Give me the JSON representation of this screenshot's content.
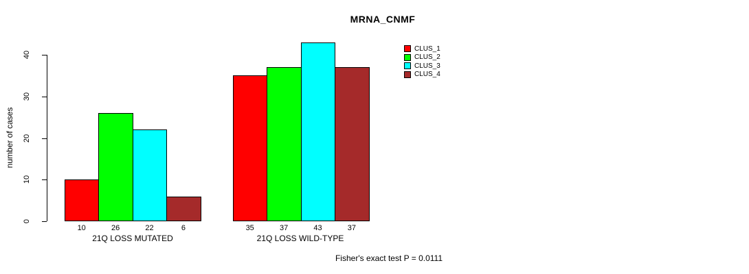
{
  "chart_data": {
    "type": "bar",
    "title": "MRNA_CNMF",
    "ylabel": "number of cases",
    "xlabel": "",
    "ylim": [
      0,
      43
    ],
    "yticks": [
      0,
      10,
      20,
      30,
      40
    ],
    "categories": [
      "21Q LOSS MUTATED",
      "21Q LOSS WILD-TYPE"
    ],
    "series": [
      {
        "name": "CLUS_1",
        "color": "#ff0000",
        "values": [
          10,
          35
        ]
      },
      {
        "name": "CLUS_2",
        "color": "#00ff00",
        "values": [
          26,
          37
        ]
      },
      {
        "name": "CLUS_3",
        "color": "#00ffff",
        "values": [
          22,
          43
        ]
      },
      {
        "name": "CLUS_4",
        "color": "#a52a2a",
        "values": [
          6,
          37
        ]
      }
    ],
    "bar_value_labels": true,
    "legend_position": "top-right",
    "grid": false,
    "annotation": "Fisher's exact test P = 0.0111"
  }
}
